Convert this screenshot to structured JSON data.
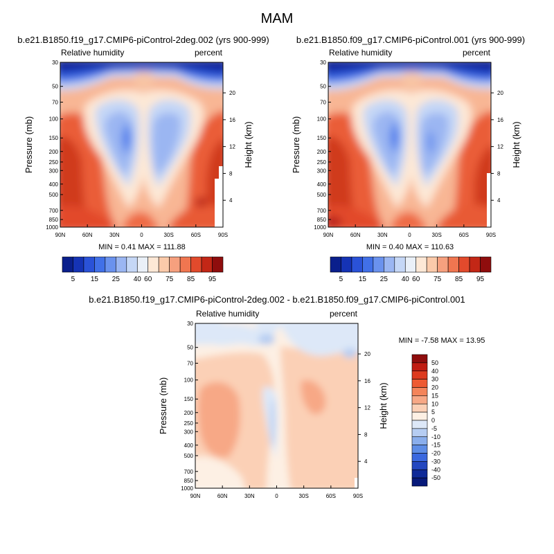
{
  "page_title": "MAM",
  "chart_data": [
    {
      "id": "left",
      "type": "heatmap",
      "case_title": "b.e21.B1850.f19_g17.CMIP6-piControl-2deg.002 (yrs 900-999)",
      "subtitle_left": "Relative humidity",
      "subtitle_right": "percent",
      "ylabel": "Pressure (mb)",
      "ylabel_right": "Height (km)",
      "x_ticks": [
        "90N",
        "60N",
        "30N",
        "0",
        "30S",
        "60S",
        "90S"
      ],
      "x_tick_values": [
        90,
        60,
        30,
        0,
        -30,
        -60,
        -90
      ],
      "y_ticks": [
        "30",
        "50",
        "70",
        "100",
        "150",
        "200",
        "250",
        "300",
        "400",
        "500",
        "700",
        "850",
        "1000"
      ],
      "y_tick_values": [
        30,
        50,
        70,
        100,
        150,
        200,
        250,
        300,
        400,
        500,
        700,
        850,
        1000
      ],
      "height_ticks": [
        "20",
        "16",
        "12",
        "8",
        "4"
      ],
      "height_tick_values": [
        20,
        16,
        12,
        8,
        4
      ],
      "ylim": [
        1000,
        30
      ],
      "minmax_text": "MIN =   0.41  MAX = 111.88",
      "min": 0.41,
      "max": 111.88,
      "colorbar_labels": [
        "5",
        "15",
        "25",
        "40",
        "60",
        "75",
        "85",
        "95"
      ]
    },
    {
      "id": "right",
      "type": "heatmap",
      "case_title": "b.e21.B1850.f09_g17.CMIP6-piControl.001 (yrs 900-999)",
      "subtitle_left": "Relative humidity",
      "subtitle_right": "percent",
      "ylabel": "Pressure (mb)",
      "ylabel_right": "Height (km)",
      "x_ticks": [
        "90N",
        "60N",
        "30N",
        "0",
        "30S",
        "60S",
        "90S"
      ],
      "x_tick_values": [
        90,
        60,
        30,
        0,
        -30,
        -60,
        -90
      ],
      "y_ticks": [
        "30",
        "50",
        "70",
        "100",
        "150",
        "200",
        "250",
        "300",
        "400",
        "500",
        "700",
        "850",
        "1000"
      ],
      "y_tick_values": [
        30,
        50,
        70,
        100,
        150,
        200,
        250,
        300,
        400,
        500,
        700,
        850,
        1000
      ],
      "height_ticks": [
        "20",
        "16",
        "12",
        "8",
        "4"
      ],
      "height_tick_values": [
        20,
        16,
        12,
        8,
        4
      ],
      "ylim": [
        1000,
        30
      ],
      "minmax_text": "MIN =   0.40  MAX = 110.63",
      "min": 0.4,
      "max": 110.63,
      "colorbar_labels": [
        "5",
        "15",
        "25",
        "40",
        "60",
        "75",
        "85",
        "95"
      ]
    },
    {
      "id": "diff",
      "type": "heatmap",
      "case_title": "b.e21.B1850.f19_g17.CMIP6-piControl-2deg.002 - b.e21.B1850.f09_g17.CMIP6-piControl.001",
      "subtitle_left": "Relative humidity",
      "subtitle_right": "percent",
      "ylabel": "Pressure (mb)",
      "ylabel_right": "Height (km)",
      "x_ticks": [
        "90N",
        "60N",
        "30N",
        "0",
        "30S",
        "60S",
        "90S"
      ],
      "x_tick_values": [
        90,
        60,
        30,
        0,
        -30,
        -60,
        -90
      ],
      "y_ticks": [
        "30",
        "50",
        "70",
        "100",
        "150",
        "200",
        "250",
        "300",
        "400",
        "500",
        "700",
        "850",
        "1000"
      ],
      "y_tick_values": [
        30,
        50,
        70,
        100,
        150,
        200,
        250,
        300,
        400,
        500,
        700,
        850,
        1000
      ],
      "height_ticks": [
        "20",
        "16",
        "12",
        "8",
        "4"
      ],
      "height_tick_values": [
        20,
        16,
        12,
        8,
        4
      ],
      "ylim": [
        1000,
        30
      ],
      "minmax_text": "MIN =  -7.58  MAX =  13.95",
      "min": -7.58,
      "max": 13.95,
      "colorbar_labels": [
        "50",
        "40",
        "30",
        "20",
        "15",
        "10",
        "5",
        "0",
        "-5",
        "-10",
        "-15",
        "-20",
        "-30",
        "-40",
        "-50"
      ]
    }
  ],
  "colors": {
    "abs_scale": [
      "#0a1f8c",
      "#1533b5",
      "#2a52d8",
      "#4170e8",
      "#6a92ee",
      "#9bb6f2",
      "#c5d7f6",
      "#eaf0f8",
      "#fde8d6",
      "#fbcaaa",
      "#f6a07e",
      "#f07650",
      "#e24a2c",
      "#c32716",
      "#8f0d0d"
    ],
    "diff_scale": [
      "#8f0d0d",
      "#c01c12",
      "#dd3a1e",
      "#ee5a32",
      "#f4845a",
      "#f7a886",
      "#fbd0b6",
      "#fdf0e4",
      "#dde8f8",
      "#b6cdf2",
      "#8aaeec",
      "#5e8de6",
      "#3a68df",
      "#2347c0",
      "#0f2a98",
      "#081a7a"
    ]
  }
}
